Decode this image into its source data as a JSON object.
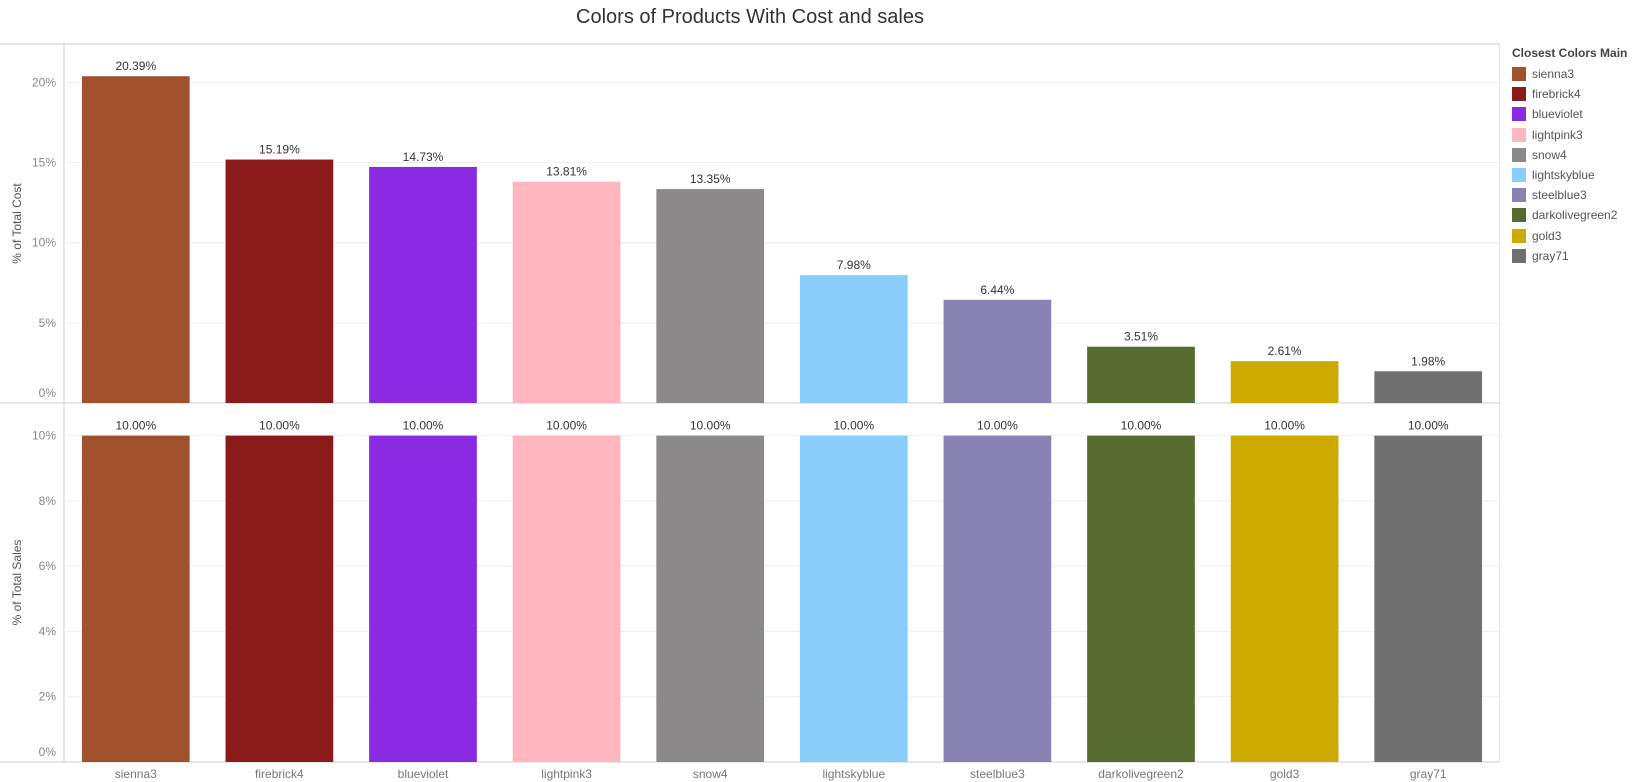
{
  "chart_data": {
    "type": "bar",
    "title": "Colors of Products With Cost and sales",
    "categories": [
      "sienna3",
      "firebrick4",
      "blueviolet",
      "lightpink3",
      "snow4",
      "lightskyblue",
      "steelblue3",
      "darkolivegreen2",
      "gold3",
      "gray71"
    ],
    "colors": [
      "#a0522d",
      "#8b1a1a",
      "#8a2be2",
      "#ffb6c1",
      "#8b8989",
      "#87cefa",
      "#8783b5",
      "#556b2f",
      "#cdaa00",
      "#707070"
    ],
    "legend": {
      "title": "Closest Colors Main",
      "placement": "right",
      "items": [
        "sienna3",
        "firebrick4",
        "blueviolet",
        "lightpink3",
        "snow4",
        "lightskyblue",
        "steelblue3",
        "darkolivegreen2",
        "gold3",
        "gray71"
      ]
    },
    "panels": [
      {
        "ylabel": "% of Total Cost",
        "values": [
          20.39,
          15.19,
          14.73,
          13.81,
          13.35,
          7.98,
          6.44,
          3.51,
          2.61,
          1.98
        ],
        "labels": [
          "20.39%",
          "15.19%",
          "14.73%",
          "13.81%",
          "13.35%",
          "7.98%",
          "6.44%",
          "3.51%",
          "2.61%",
          "1.98%"
        ],
        "ylim": [
          0,
          22.4
        ],
        "yticks": [
          0,
          5,
          10,
          15,
          20
        ],
        "ytick_labels": [
          "0%",
          "5%",
          "10%",
          "15%",
          "20%"
        ]
      },
      {
        "ylabel": "% of Total Sales",
        "values": [
          10,
          10,
          10,
          10,
          10,
          10,
          10,
          10,
          10,
          10
        ],
        "labels": [
          "10.00%",
          "10.00%",
          "10.00%",
          "10.00%",
          "10.00%",
          "10.00%",
          "10.00%",
          "10.00%",
          "10.00%",
          "10.00%"
        ],
        "ylim": [
          0,
          11
        ],
        "yticks": [
          0,
          2,
          4,
          6,
          8,
          10
        ],
        "ytick_labels": [
          "0%",
          "2%",
          "4%",
          "6%",
          "8%",
          "10%"
        ]
      }
    ],
    "grid": true
  }
}
